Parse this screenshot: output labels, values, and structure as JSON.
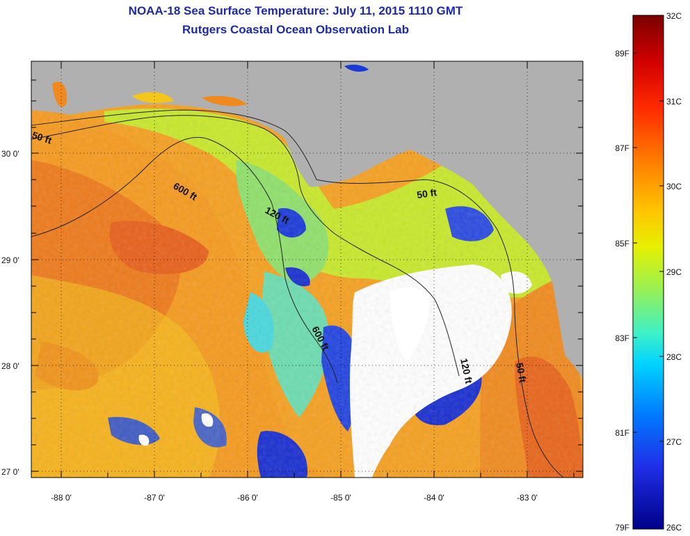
{
  "title": {
    "line1": "NOAA-18 Sea Surface Temperature:  July 11, 2015 1110 GMT",
    "line2": "Rutgers Coastal Ocean Observation Lab"
  },
  "map": {
    "lat_labels": [
      "30 0'",
      "29 0'",
      "28 0'",
      "27 0'"
    ],
    "lon_labels": [
      "-88 0'",
      "-87 0'",
      "-86 0'",
      "-85 0'",
      "-84 0'",
      "-83 0'"
    ],
    "contour_labels": [
      "50 ft",
      "600 ft",
      "120 ft",
      "50 ft",
      "600 ft",
      "120 ft",
      "50 ft"
    ],
    "colors": {
      "land": "#b0b0b0",
      "cloud": "#ffffff",
      "warm": "#f08a1e",
      "hot": "#e8561a",
      "mid": "#f5c61a",
      "cool": "#a8e83a",
      "cooler": "#4fd6d2",
      "cold": "#1a2fd0"
    }
  },
  "colorbar": {
    "celsius": [
      "32C",
      "31C",
      "30C",
      "29C",
      "28C",
      "27C",
      "26C"
    ],
    "fahrenheit": [
      "89F",
      "87F",
      "85F",
      "83F",
      "81F",
      "79F"
    ],
    "stops": [
      "#7a0000",
      "#d10000",
      "#ff2a00",
      "#ff7a00",
      "#ffc400",
      "#e6f000",
      "#9cf050",
      "#3cf0c8",
      "#00d2ff",
      "#0078ff",
      "#1f2ee6",
      "#00008a"
    ]
  }
}
